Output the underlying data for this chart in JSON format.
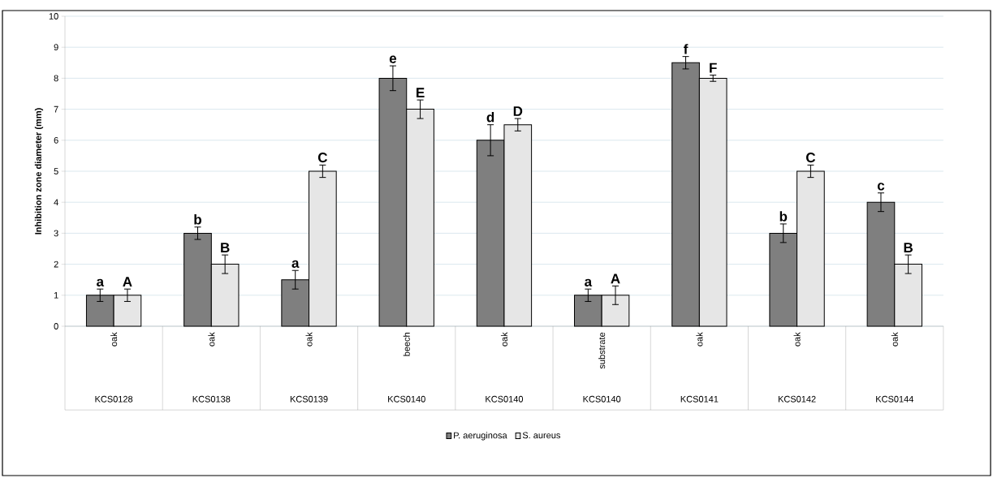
{
  "chart_data": {
    "type": "bar",
    "ylabel": "Inhibition zone diameter (mm)",
    "categories": [
      "KCS0128",
      "KCS0138",
      "KCS0139",
      "KCS0140",
      "KCS0140",
      "KCS0140",
      "KCS0141",
      "KCS0142",
      "KCS0144"
    ],
    "series": [
      {
        "name": "P. aeruginosa",
        "color": "#7f7f7f",
        "values": [
          1,
          3,
          1.5,
          8,
          6,
          1,
          8.5,
          3,
          4
        ],
        "errors": [
          0.2,
          0.2,
          0.3,
          0.4,
          0.5,
          0.2,
          0.2,
          0.3,
          0.3
        ]
      },
      {
        "name": "S. aureus",
        "color": "#e6e6e6",
        "values": [
          1,
          2,
          5,
          7,
          6.5,
          1,
          8,
          5,
          2
        ],
        "errors": [
          0.2,
          0.3,
          0.2,
          0.3,
          0.2,
          0.3,
          0.1,
          0.2,
          0.3
        ]
      }
    ],
    "ylim": [
      0,
      10
    ],
    "yticks": [
      0,
      1,
      2,
      3,
      4,
      5,
      6,
      7,
      8,
      9,
      10
    ],
    "grid": "y",
    "legend": "bottom",
    "annotations": [
      "oak",
      "a",
      "A",
      "oak",
      "b",
      "B",
      "oak",
      "a",
      "C",
      "beech",
      "e",
      "E",
      "oak",
      "d",
      "D",
      "substrate",
      "a",
      "A",
      "oak",
      "f",
      "F",
      "oak",
      "b",
      "C",
      "oak",
      "c",
      "B"
    ]
  }
}
